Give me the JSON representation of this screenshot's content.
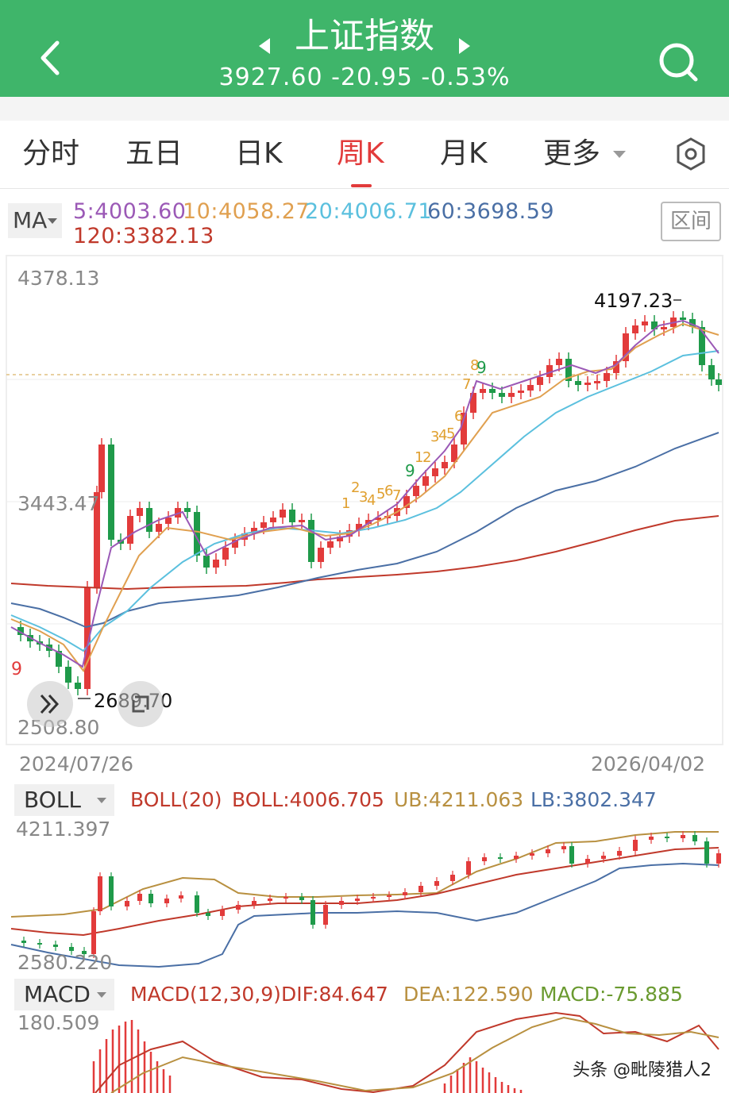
{
  "header": {
    "title": "上证指数",
    "quote": "3927.60 -20.95 -0.53%"
  },
  "tabs": [
    "分时",
    "五日",
    "日K",
    "周K",
    "月K",
    "更多"
  ],
  "ma": {
    "label": "MA",
    "ma5": "5:4003.60",
    "ma10": "10:4058.27",
    "ma20": "20:4006.71",
    "ma60": "60:3698.59",
    "ma120": "120:3382.13",
    "interval_button": "区间"
  },
  "kline": {
    "high_axis": "4378.13",
    "mid_axis": "3443.47",
    "low_axis": "2508.80",
    "max_marker": "4197.23",
    "min_marker": "2689.70",
    "start_date": "2024/07/26",
    "end_date": "2026/04/02",
    "td_left": "9",
    "td_mid": "9",
    "td_top": "9"
  },
  "boll": {
    "label": "BOLL",
    "name": "BOLL(20)",
    "mid": "BOLL:4006.705",
    "ub": "UB:4211.063",
    "lb": "LB:3802.347",
    "top_axis": "4211.397",
    "bottom_axis": "2580.220"
  },
  "macd": {
    "label": "MACD",
    "name": "MACD(12,30,9)",
    "dif": "DIF:84.647",
    "dea": "DEA:122.590",
    "macd": "MACD:-75.885",
    "top_axis": "180.509"
  },
  "colors": {
    "header_bg": "#3fb56a",
    "up": "#e23b3b",
    "down": "#1f9a4a",
    "ma5": "#9b59b6",
    "ma10": "#e0a050",
    "ma20": "#5bc0de",
    "ma60": "#4a6fa5",
    "ma120": "#c0392b"
  },
  "watermark": "头条 @毗陵猎人2"
}
